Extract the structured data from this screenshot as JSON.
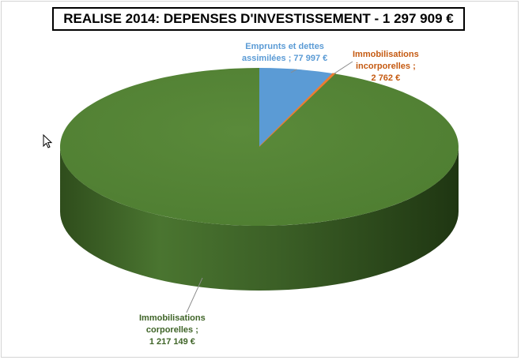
{
  "title": "REALISE 2014: DEPENSES D'INVESTISSEMENT - 1 297 909 €",
  "chart_data": {
    "type": "pie",
    "style": "3d",
    "title": "REALISE 2014: DEPENSES D'INVESTISSEMENT - 1 297 909 €",
    "total": 1297909,
    "slices": [
      {
        "name": "Emprunts et dettes assimilées",
        "value": 77997,
        "color": "#5b9bd5",
        "label_lines": [
          "Emprunts et dettes",
          "assimilées ; 77 997 €"
        ]
      },
      {
        "name": "Immobilisations incorporelles",
        "value": 2762,
        "color": "#ed7d31",
        "label_lines": [
          "Immobilisations",
          "incorporelles ;",
          "2 762 €"
        ]
      },
      {
        "name": "Immobilisations corporelles",
        "value": 1217149,
        "color": "#548235",
        "label_lines": [
          "Immobilisations",
          "corporelles ;",
          "1 217 149 €"
        ]
      }
    ]
  }
}
